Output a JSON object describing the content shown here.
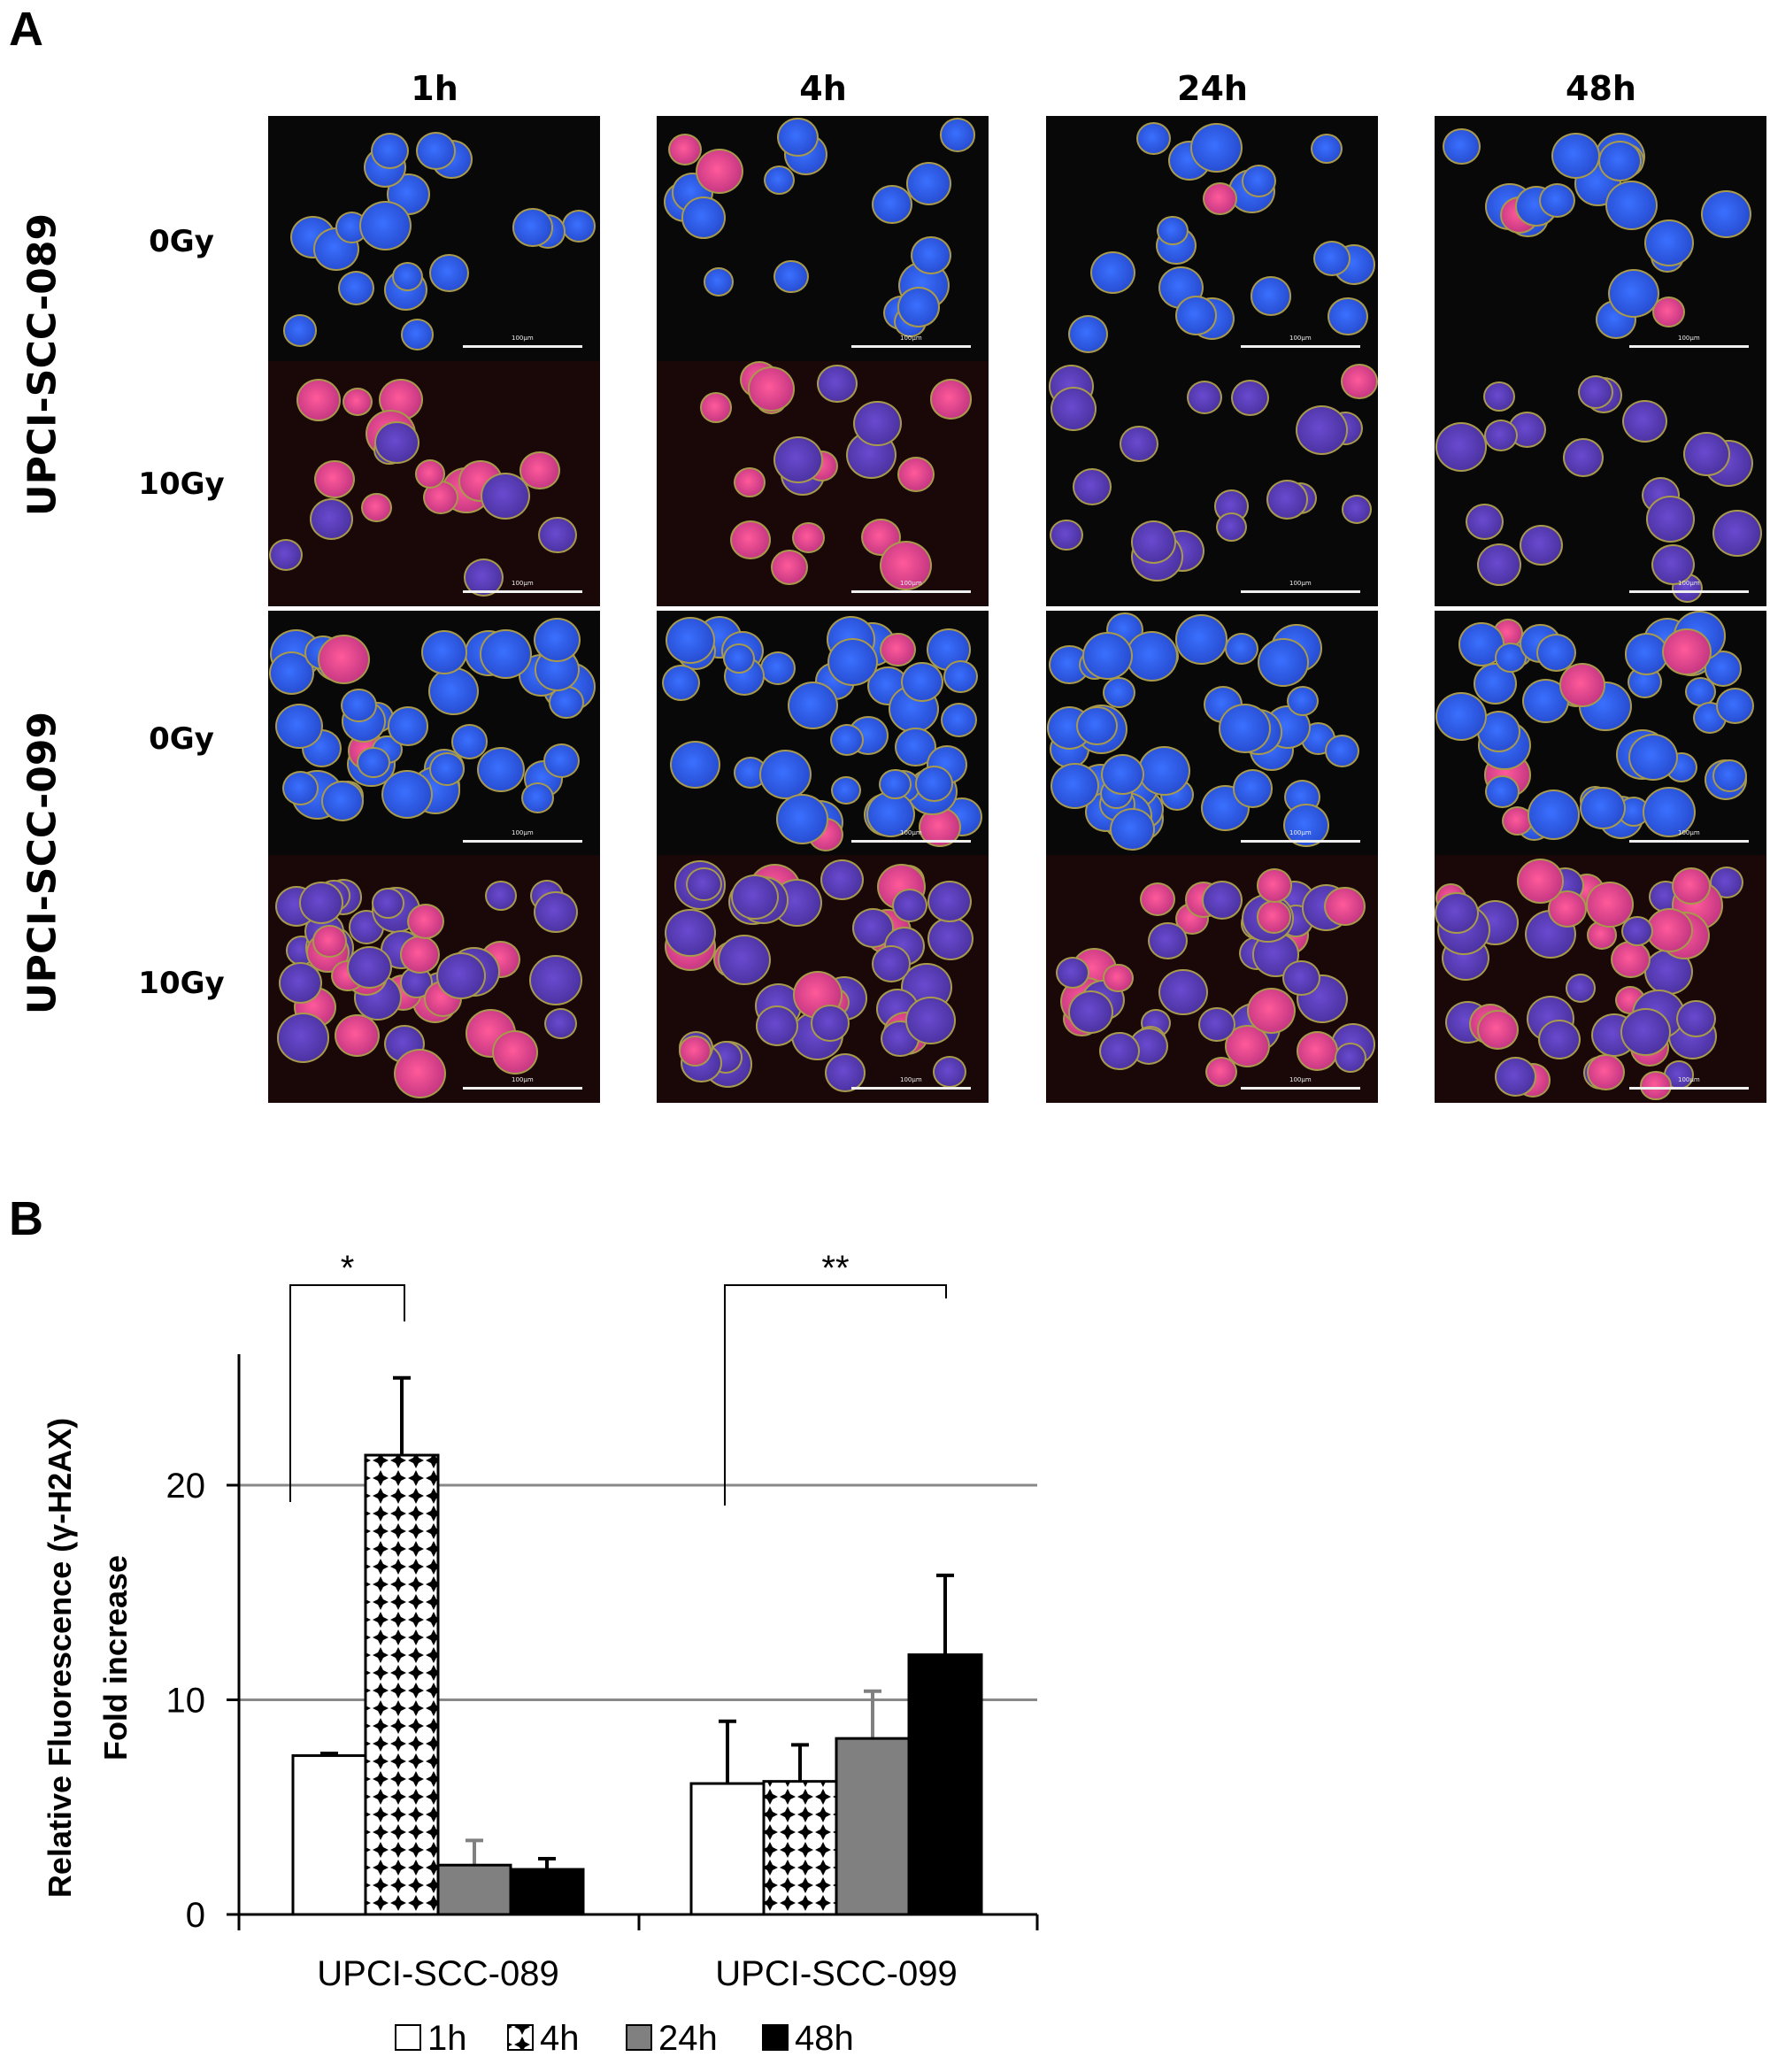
{
  "panel_a": {
    "label": "A",
    "columns": [
      "1h",
      "4h",
      "24h",
      "48h"
    ],
    "cell_lines": [
      {
        "name": "UPCI-SCC-089",
        "doses": [
          "0Gy",
          "10Gy"
        ]
      },
      {
        "name": "UPCI-SCC-099",
        "doses": [
          "0Gy",
          "10Gy"
        ]
      }
    ],
    "scale_bar_label": "100µm"
  },
  "panel_b": {
    "label": "B"
  },
  "chart_data": {
    "type": "bar",
    "title": "",
    "ylabel_line1": "Relative Fluorescence (γ-H2AX)",
    "ylabel_line2": "Fold increase",
    "xlabel": "",
    "categories": [
      "UPCI-SCC-089",
      "UPCI-SCC-099"
    ],
    "ylim": [
      0,
      26
    ],
    "yticks": [
      "0",
      "10",
      "20"
    ],
    "ytick_values": [
      0,
      10,
      20
    ],
    "grid": "horizontal at 10 and 20",
    "legend_placement": "bottom",
    "series": [
      {
        "name": "1h",
        "fill": "white",
        "color": "#ffffff",
        "values": [
          7.4,
          6.1
        ],
        "error_upper": [
          7.5,
          9.0
        ]
      },
      {
        "name": "4h",
        "fill": "diamond-pattern",
        "color": "#000000",
        "values": [
          21.4,
          6.2
        ],
        "error_upper": [
          25.0,
          7.9
        ]
      },
      {
        "name": "24h",
        "fill": "gray",
        "color": "#808080",
        "values": [
          2.3,
          8.2
        ],
        "error_upper": [
          3.45,
          10.4
        ]
      },
      {
        "name": "48h",
        "fill": "black",
        "color": "#000000",
        "values": [
          2.1,
          12.1
        ],
        "error_upper": [
          2.6,
          15.8
        ]
      }
    ],
    "significance": [
      {
        "category": "UPCI-SCC-089",
        "between": [
          "1h",
          "4h"
        ],
        "label": "*"
      },
      {
        "category": "UPCI-SCC-099",
        "between": [
          "1h",
          "48h"
        ],
        "label": "**"
      }
    ]
  }
}
